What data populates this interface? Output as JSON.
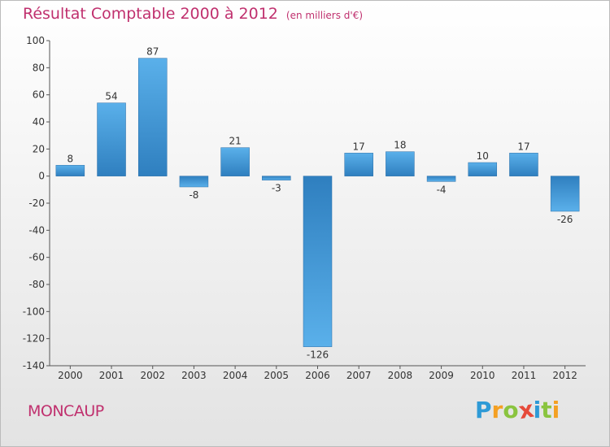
{
  "title": "Résultat Comptable 2000 à 2012",
  "unit": "(en milliers d'€)",
  "town": "MONCAUP",
  "logo": {
    "letters": [
      "P",
      "r",
      "o",
      "x",
      "i",
      "t",
      "i"
    ],
    "colors": [
      "#2e9ad6",
      "#f4a023",
      "#8ac43f",
      "#e64a3a",
      "#2e9ad6",
      "#8ac43f",
      "#f4a023"
    ]
  },
  "colors": {
    "accent": "#c0306e",
    "bar_top": "#5ab0ea",
    "bar_bottom": "#2f7fbf"
  },
  "chart_data": {
    "type": "bar",
    "categories": [
      "2000",
      "2001",
      "2002",
      "2003",
      "2004",
      "2005",
      "2006",
      "2007",
      "2008",
      "2009",
      "2010",
      "2011",
      "2012"
    ],
    "values": [
      8,
      54,
      87,
      -8,
      21,
      -3,
      -126,
      17,
      18,
      -4,
      10,
      17,
      -26
    ],
    "ylim": [
      -140,
      100
    ],
    "yticks": [
      100,
      80,
      60,
      40,
      20,
      0,
      -20,
      -40,
      -60,
      -80,
      -100,
      -120,
      -140
    ],
    "grid": false
  }
}
